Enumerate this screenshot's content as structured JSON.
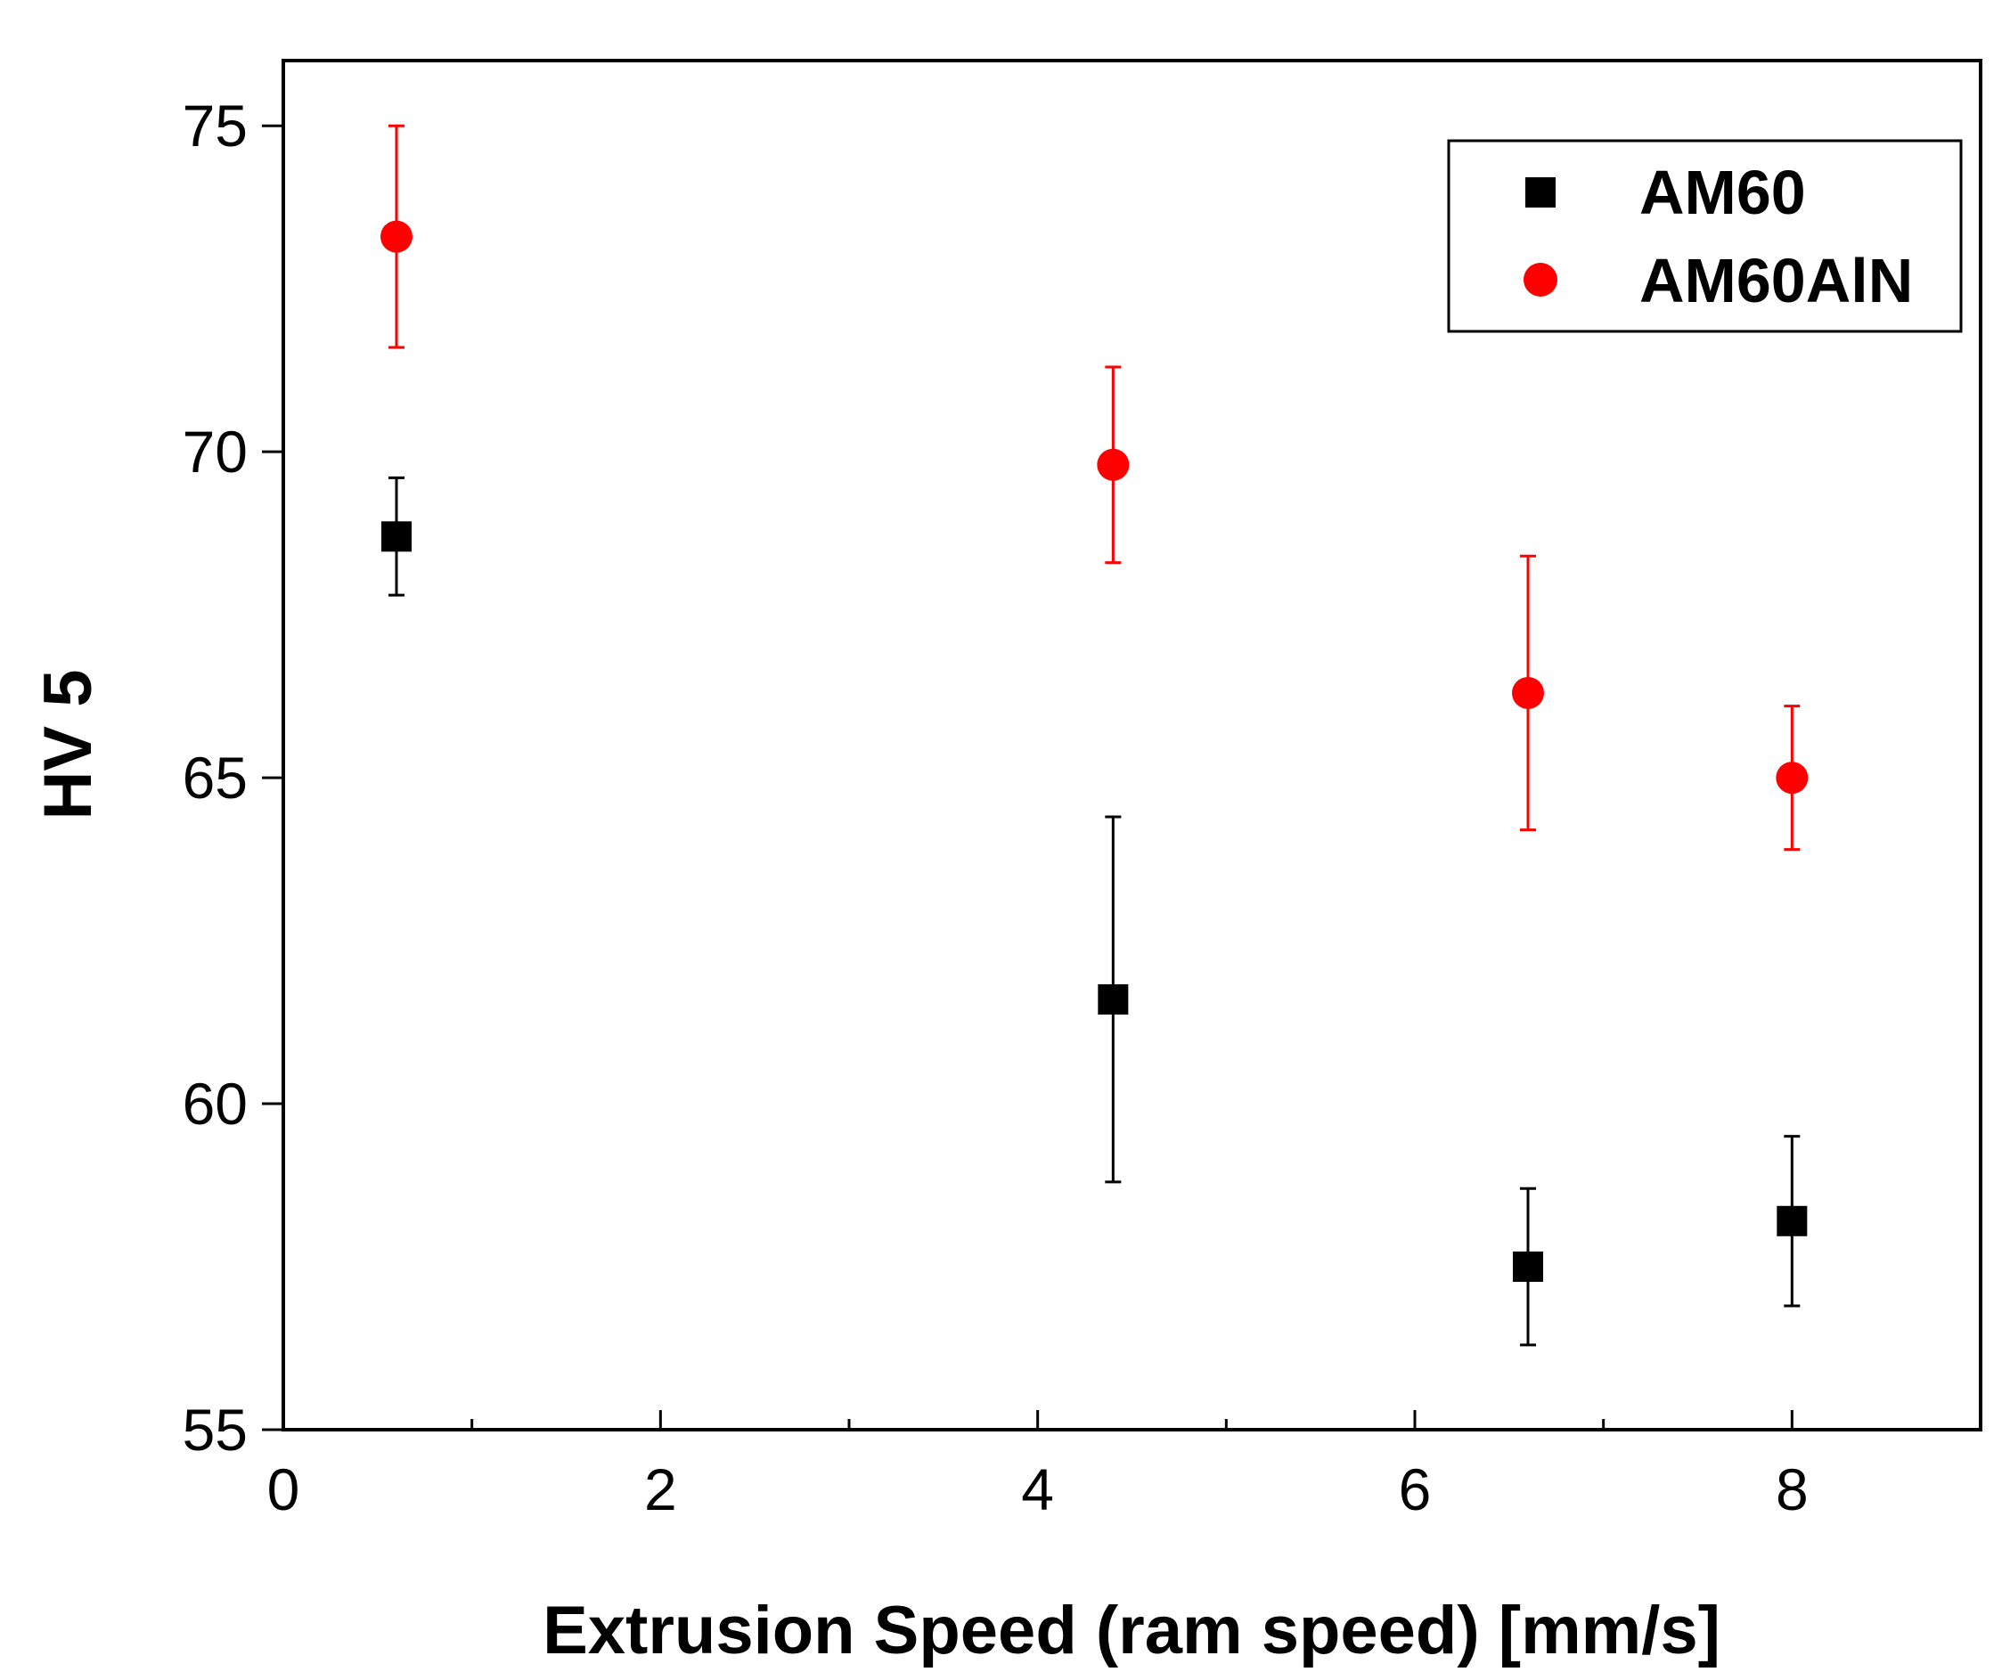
{
  "chart_data": {
    "type": "scatter",
    "title": "",
    "xlabel": "Extrusion Speed (ram speed) [mm/s]",
    "ylabel": "HV 5",
    "xlim": [
      0,
      9
    ],
    "ylim": [
      55,
      76
    ],
    "x_ticks": [
      0,
      2,
      4,
      6,
      8
    ],
    "y_ticks": [
      55,
      60,
      65,
      70,
      75
    ],
    "legend_position": "top-right",
    "series": [
      {
        "name": "AM60",
        "marker": "square",
        "color": "#000000",
        "points": [
          {
            "x": 0.6,
            "y": 68.7,
            "err_low": 67.8,
            "err_high": 69.6
          },
          {
            "x": 4.4,
            "y": 61.6,
            "err_low": 58.8,
            "err_high": 64.4
          },
          {
            "x": 6.6,
            "y": 57.5,
            "err_low": 56.3,
            "err_high": 58.7
          },
          {
            "x": 8.0,
            "y": 58.2,
            "err_low": 56.9,
            "err_high": 59.5
          }
        ]
      },
      {
        "name": "AM60AlN",
        "marker": "circle",
        "color": "#ff0000",
        "points": [
          {
            "x": 0.6,
            "y": 73.3,
            "err_low": 71.6,
            "err_high": 75.0
          },
          {
            "x": 4.4,
            "y": 69.8,
            "err_low": 68.3,
            "err_high": 71.3
          },
          {
            "x": 6.6,
            "y": 66.3,
            "err_low": 64.2,
            "err_high": 68.4
          },
          {
            "x": 8.0,
            "y": 65.0,
            "err_low": 63.9,
            "err_high": 66.1
          }
        ]
      }
    ]
  }
}
